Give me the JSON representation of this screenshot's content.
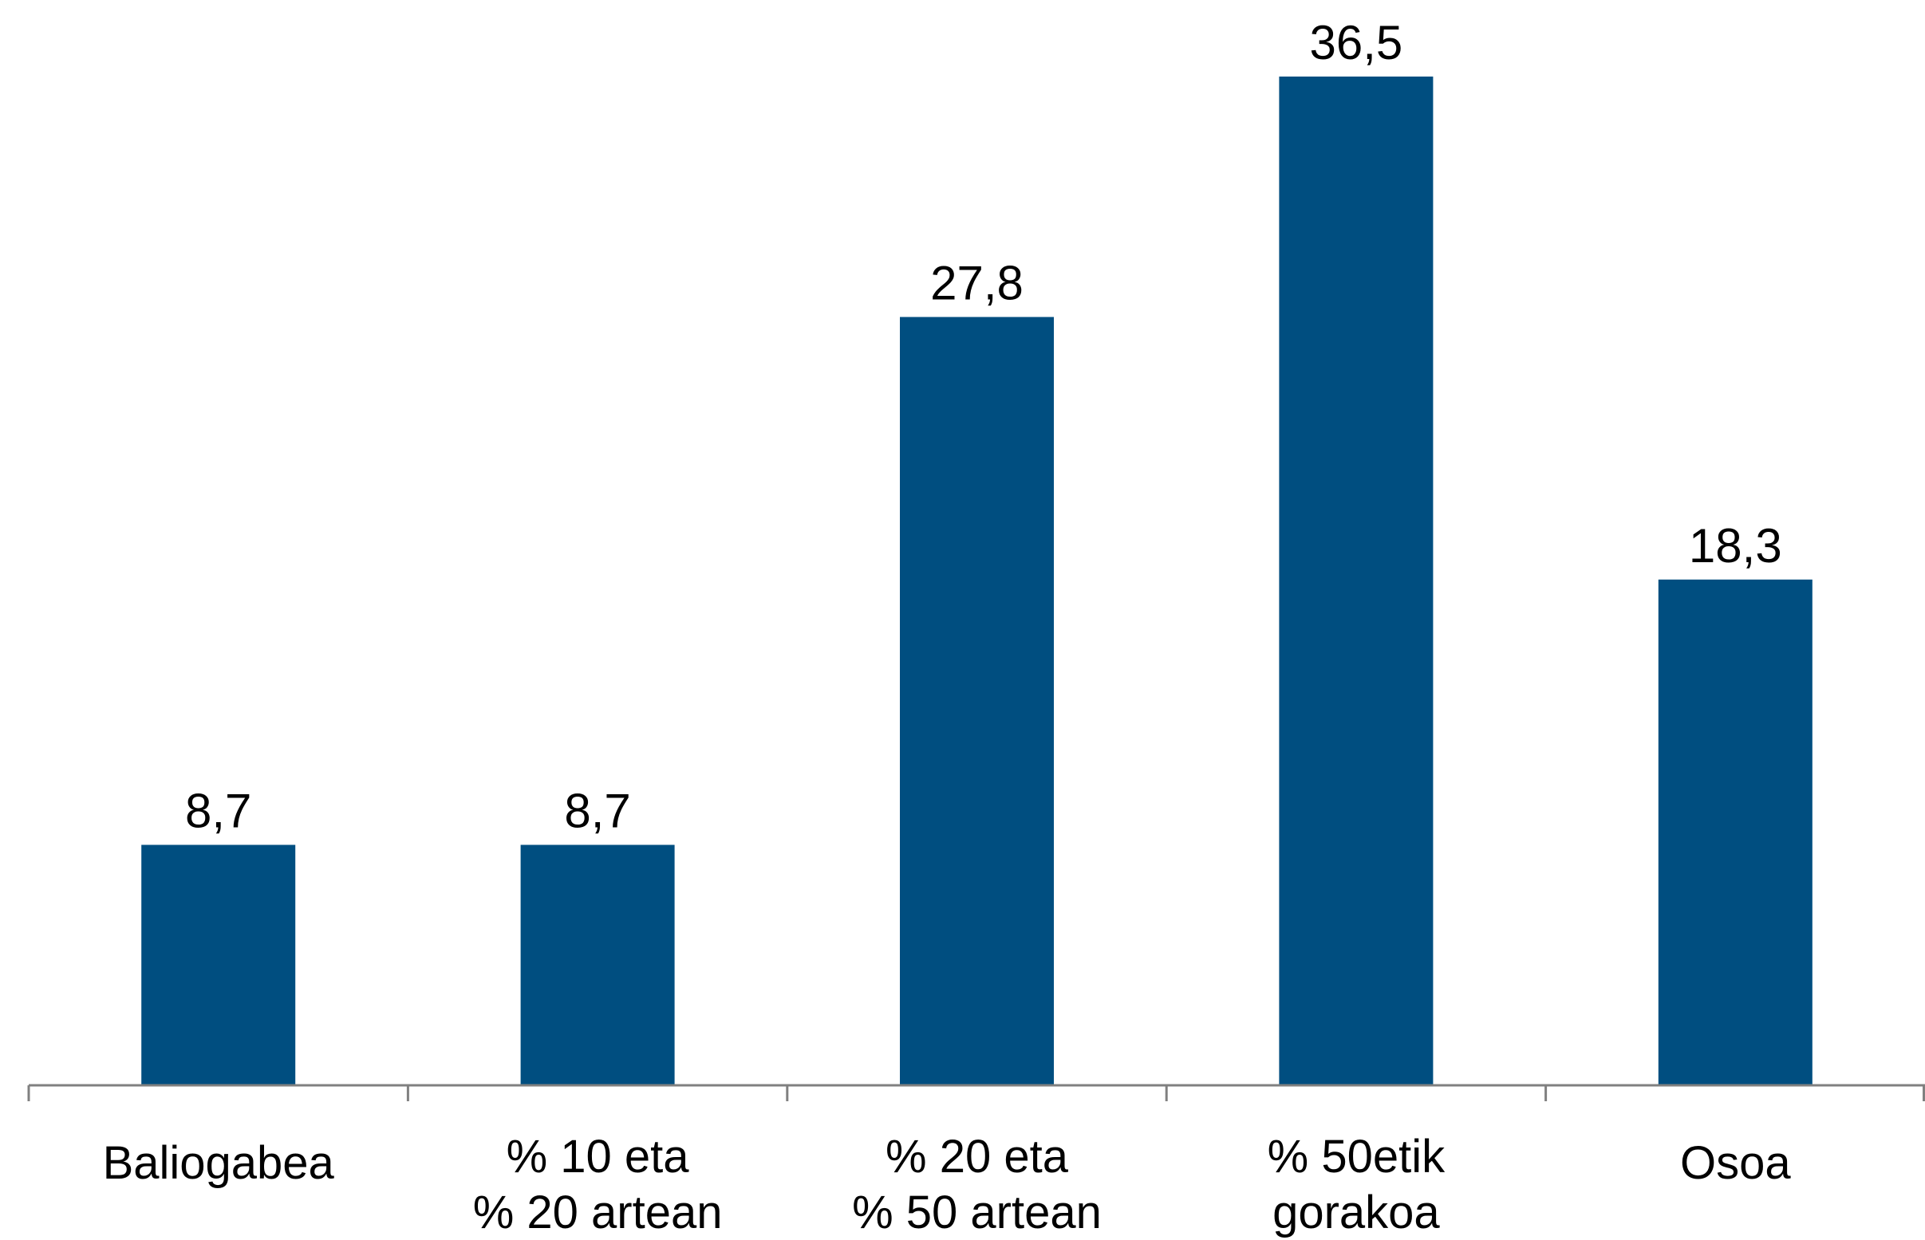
{
  "chart_data": {
    "type": "bar",
    "categories": [
      [
        "Baliogabea"
      ],
      [
        "% 10 eta",
        "% 20 artean"
      ],
      [
        "% 20 eta",
        "% 50 artean"
      ],
      [
        "% 50etik",
        "gorakoa"
      ],
      [
        "Osoa"
      ]
    ],
    "values": [
      8.7,
      8.7,
      27.8,
      36.5,
      18.3
    ],
    "value_labels": [
      "8,7",
      "8,7",
      "27,8",
      "36,5",
      "18,3"
    ],
    "ylim": [
      0,
      40
    ],
    "grid": false,
    "legend": "none",
    "colors": {
      "bar": "#004e80",
      "axis": "#808080",
      "text": "#000000"
    }
  }
}
